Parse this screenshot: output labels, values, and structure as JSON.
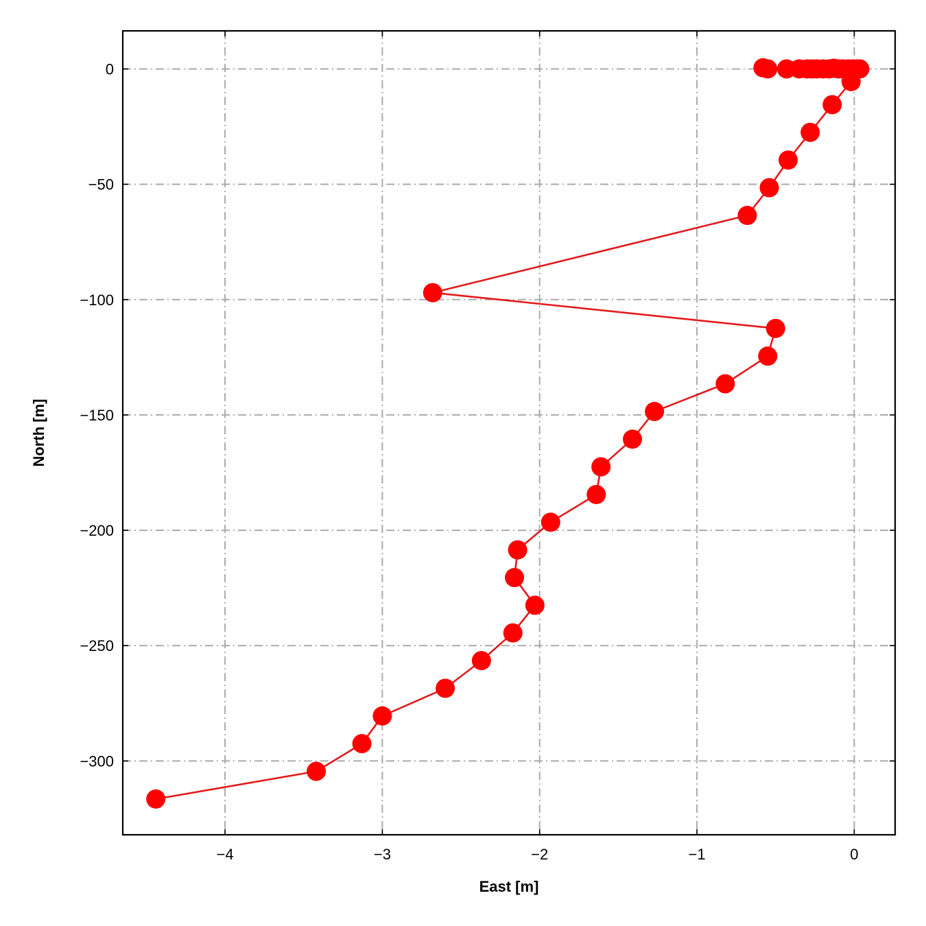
{
  "chart_data": {
    "type": "line",
    "xlabel": "East [m]",
    "ylabel": "North [m]",
    "xlim": [
      -4.65,
      0.26
    ],
    "ylim": [
      -332,
      16.5
    ],
    "grid": true,
    "x_ticks": [
      {
        "value": -4,
        "label": "−4"
      },
      {
        "value": -3,
        "label": "−3"
      },
      {
        "value": -2,
        "label": "−2"
      },
      {
        "value": -1,
        "label": "−1"
      },
      {
        "value": 0,
        "label": "0"
      }
    ],
    "y_ticks": [
      {
        "value": 0,
        "label": "0"
      },
      {
        "value": -50,
        "label": "−50"
      },
      {
        "value": -100,
        "label": "−100"
      },
      {
        "value": -150,
        "label": "−150"
      },
      {
        "value": -200,
        "label": "−200"
      },
      {
        "value": -250,
        "label": "−250"
      },
      {
        "value": -300,
        "label": "−300"
      }
    ],
    "series": [
      {
        "color": "#ff0000",
        "line_color": "#e31a1c",
        "marker": "circle",
        "points": [
          {
            "x": -0.58,
            "y": 0.5
          },
          {
            "x": -0.55,
            "y": 0.0
          },
          {
            "x": -0.43,
            "y": 0.0
          },
          {
            "x": -0.35,
            "y": 0.0
          },
          {
            "x": -0.3,
            "y": 0.0
          },
          {
            "x": -0.27,
            "y": 0.0
          },
          {
            "x": -0.24,
            "y": 0.0
          },
          {
            "x": -0.2,
            "y": 0.0
          },
          {
            "x": -0.16,
            "y": 0.0
          },
          {
            "x": -0.13,
            "y": 0.3
          },
          {
            "x": -0.1,
            "y": 0.0
          },
          {
            "x": -0.07,
            "y": 0.0
          },
          {
            "x": -0.04,
            "y": 0.0
          },
          {
            "x": -0.01,
            "y": 0.0
          },
          {
            "x": 0.02,
            "y": 0.0
          },
          {
            "x": 0.035,
            "y": 0.0
          },
          {
            "x": -0.02,
            "y": -5.5
          },
          {
            "x": -0.14,
            "y": -15.5
          },
          {
            "x": -0.28,
            "y": -27.5
          },
          {
            "x": -0.42,
            "y": -39.5
          },
          {
            "x": -0.54,
            "y": -51.5
          },
          {
            "x": -0.68,
            "y": -63.5
          },
          {
            "x": -2.68,
            "y": -97.0
          },
          {
            "x": -0.5,
            "y": -112.5
          },
          {
            "x": -0.55,
            "y": -124.5
          },
          {
            "x": -0.82,
            "y": -136.5
          },
          {
            "x": -1.27,
            "y": -148.5
          },
          {
            "x": -1.41,
            "y": -160.5
          },
          {
            "x": -1.61,
            "y": -172.5
          },
          {
            "x": -1.64,
            "y": -184.5
          },
          {
            "x": -1.93,
            "y": -196.5
          },
          {
            "x": -2.14,
            "y": -208.5
          },
          {
            "x": -2.16,
            "y": -220.5
          },
          {
            "x": -2.03,
            "y": -232.5
          },
          {
            "x": -2.17,
            "y": -244.5
          },
          {
            "x": -2.37,
            "y": -256.5
          },
          {
            "x": -2.6,
            "y": -268.5
          },
          {
            "x": -3.0,
            "y": -280.5
          },
          {
            "x": -3.13,
            "y": -292.5
          },
          {
            "x": -3.42,
            "y": -304.5
          },
          {
            "x": -4.44,
            "y": -316.5
          }
        ]
      }
    ]
  }
}
